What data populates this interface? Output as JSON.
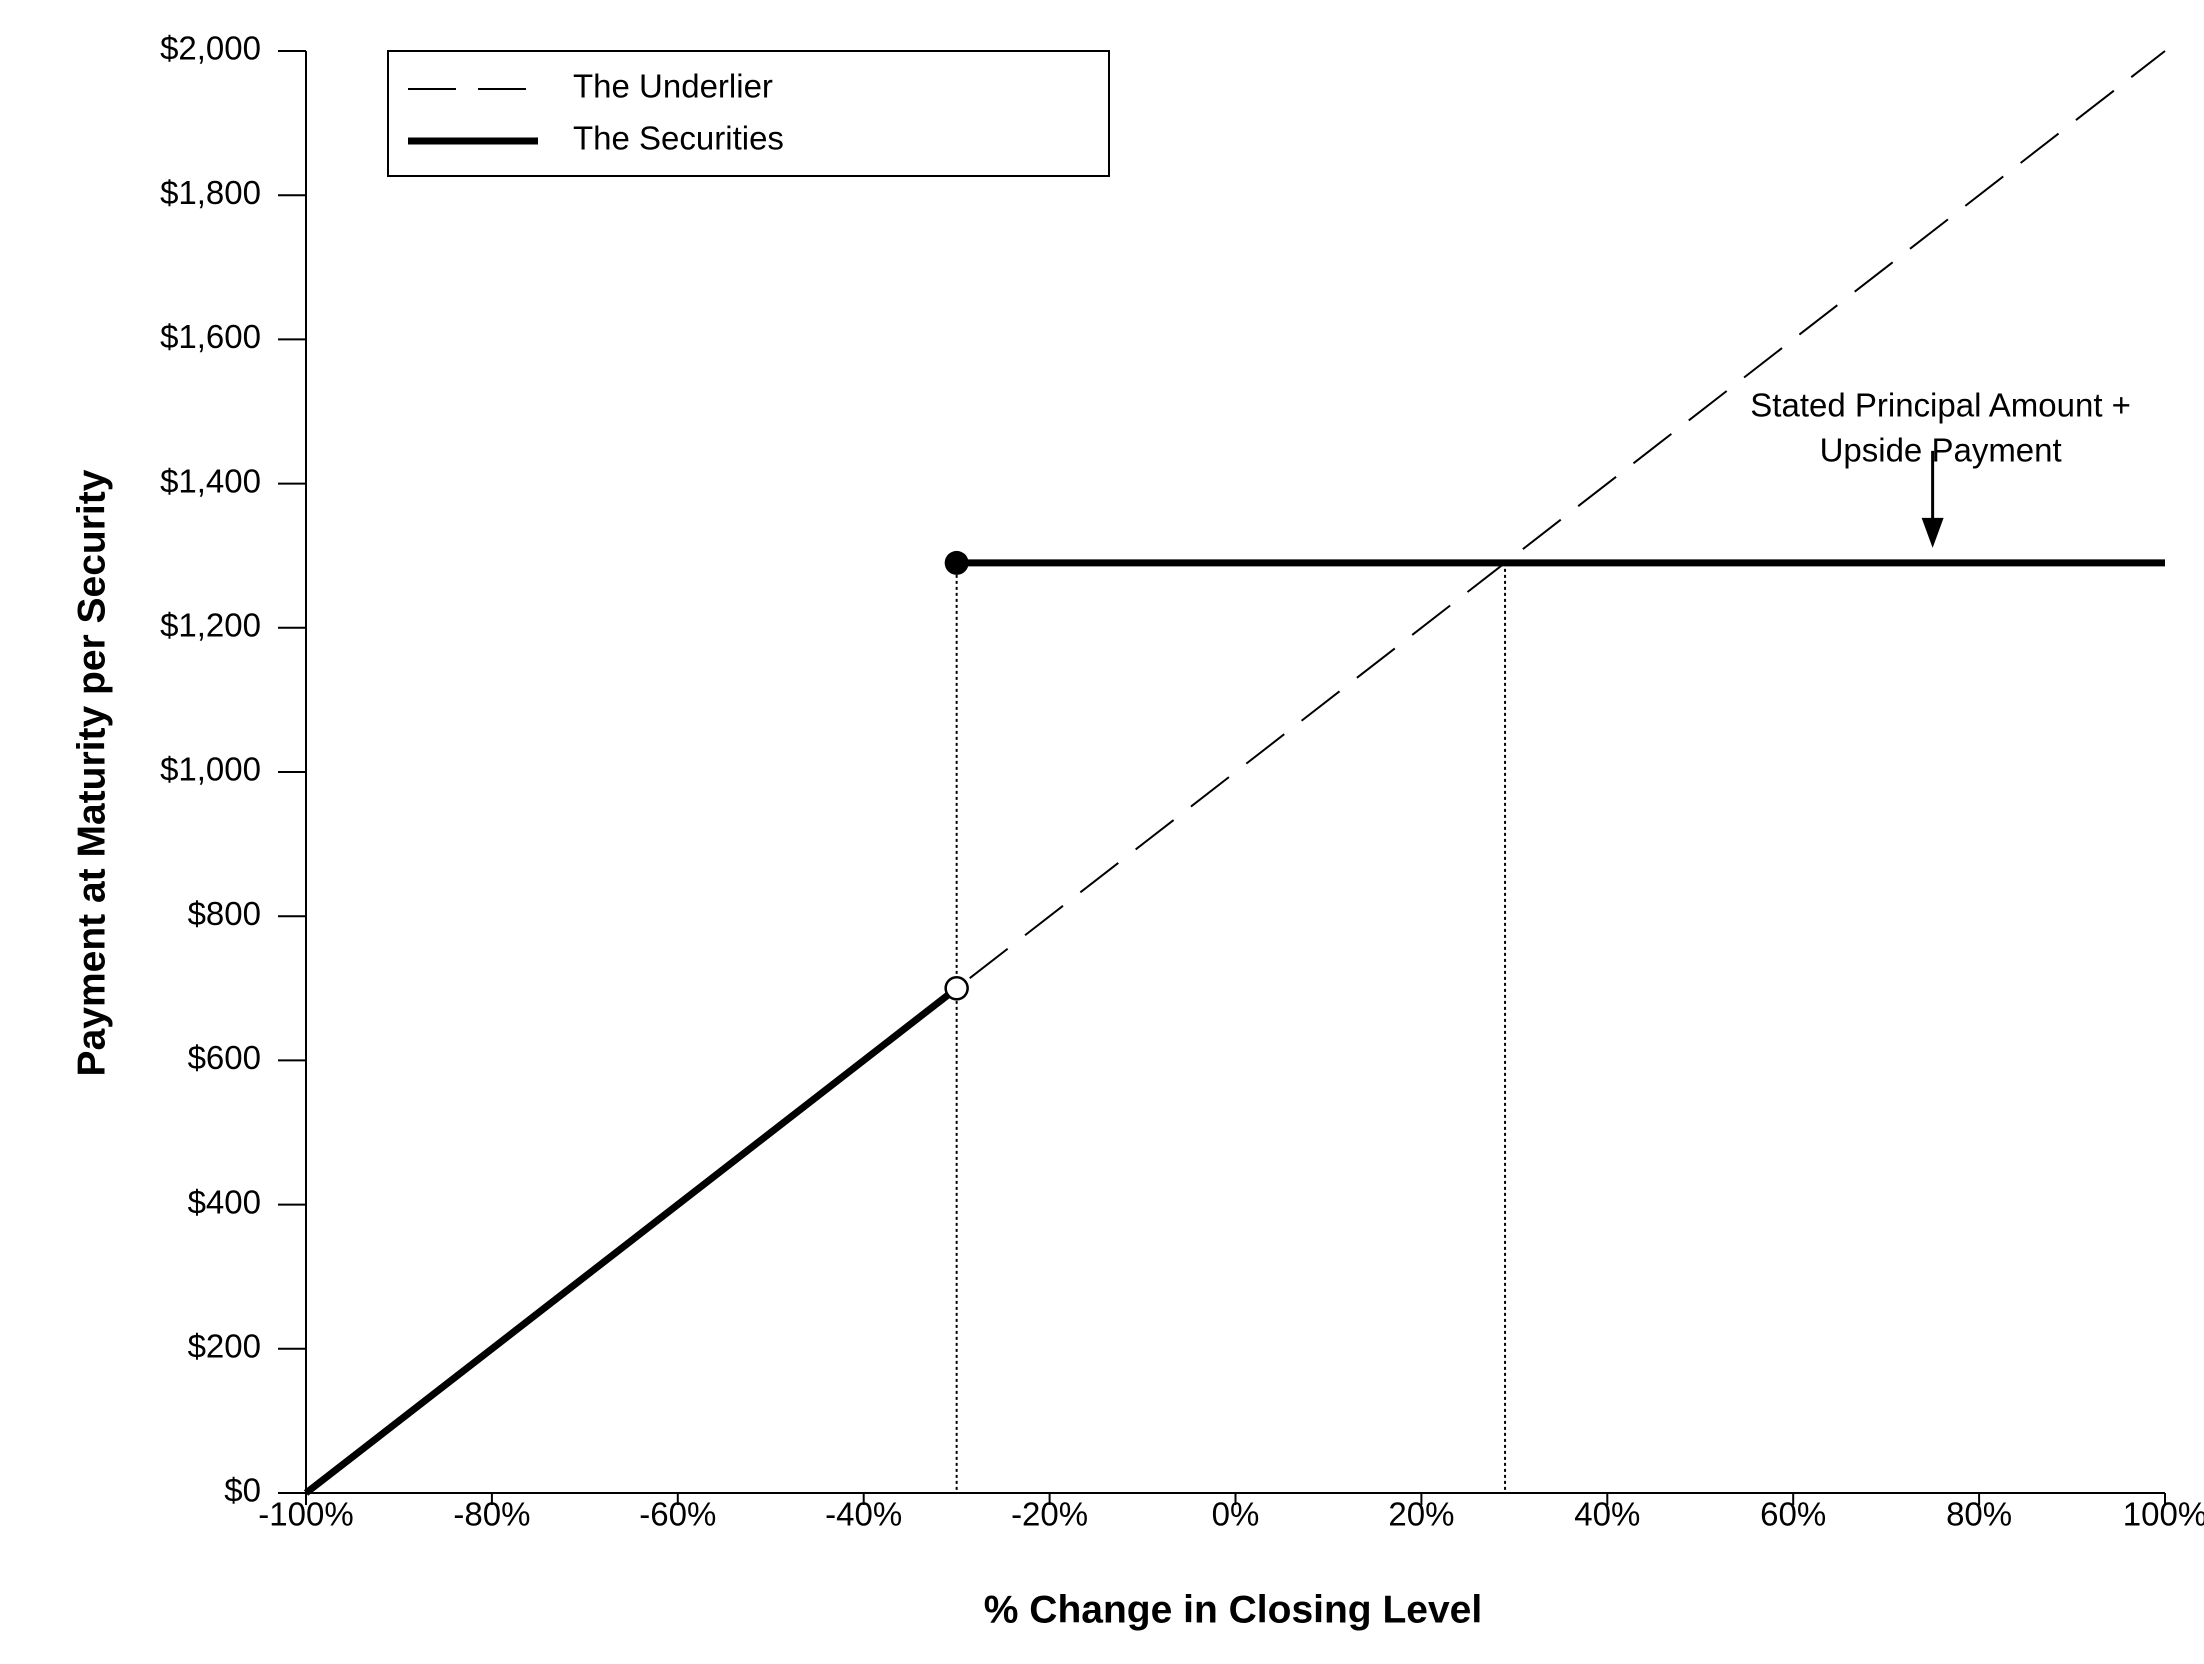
{
  "chart_data": {
    "type": "line",
    "x_label": "% Change in Closing Level",
    "y_label": "Payment at Maturity per Security",
    "xlim": [
      -100,
      100
    ],
    "ylim": [
      0,
      2000
    ],
    "xticks": [
      {
        "value": -100,
        "label": "-100%"
      },
      {
        "value": -80,
        "label": "-80%"
      },
      {
        "value": -60,
        "label": "-60%"
      },
      {
        "value": -40,
        "label": "-40%"
      },
      {
        "value": -20,
        "label": "-20%"
      },
      {
        "value": 0,
        "label": "0%"
      },
      {
        "value": 20,
        "label": "20%"
      },
      {
        "value": 40,
        "label": "40%"
      },
      {
        "value": 60,
        "label": "60%"
      },
      {
        "value": 80,
        "label": "80%"
      },
      {
        "value": 100,
        "label": "100%"
      }
    ],
    "yticks": [
      {
        "value": 0,
        "label": "$0"
      },
      {
        "value": 200,
        "label": "$200"
      },
      {
        "value": 400,
        "label": "$400"
      },
      {
        "value": 600,
        "label": "$600"
      },
      {
        "value": 800,
        "label": "$800"
      },
      {
        "value": 1000,
        "label": "$1,000"
      },
      {
        "value": 1200,
        "label": "$1,200"
      },
      {
        "value": 1400,
        "label": "$1,400"
      },
      {
        "value": 1600,
        "label": "$1,600"
      },
      {
        "value": 1800,
        "label": "$1,800"
      },
      {
        "value": 2000,
        "label": "$2,000"
      }
    ],
    "series": [
      {
        "name": "The Underlier",
        "color": "#000000",
        "dash": true,
        "x": [
          -100,
          100
        ],
        "values": [
          0,
          2000
        ]
      },
      {
        "name": "The Securities",
        "color": "#000000",
        "dash": false,
        "x": [
          -100,
          -30,
          null,
          -30,
          100
        ],
        "values": [
          0,
          700,
          null,
          1290,
          1290
        ]
      }
    ],
    "dotted_lines": [
      {
        "x": -30,
        "y": 1290
      },
      {
        "x": 29,
        "y": 1290
      }
    ],
    "annotation": {
      "lines": [
        "Stated Principal Amount +",
        "Upside Payment"
      ],
      "x": 75,
      "y": 1290
    },
    "legend": "upper left"
  }
}
